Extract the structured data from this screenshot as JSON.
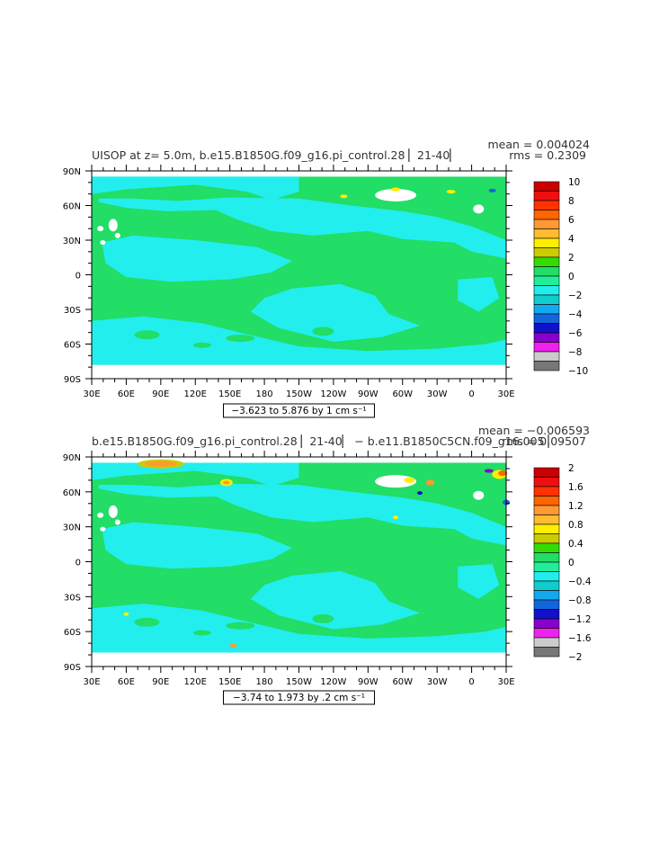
{
  "panels": [
    {
      "title": "UISOP at z=    5.0m, b.e15.B1850G.f09_g16.pi_control.28 ▏21-40▏",
      "mean_label": "mean = 0.004024",
      "rms_label": "rms = 0.2309",
      "range_label": "−3.623 to 5.876 by 1 cm s⁻¹",
      "colorbar": {
        "labels": [
          "10",
          "8",
          "6",
          "4",
          "2",
          "0",
          "−2",
          "−4",
          "−6",
          "−8",
          "−10"
        ],
        "colors": [
          "#cc0000",
          "#ee1010",
          "#ff3300",
          "#ff6600",
          "#ff9933",
          "#ffbb33",
          "#ffee00",
          "#cccc00",
          "#33dd00",
          "#22dd66",
          "#22ee99",
          "#22eeee",
          "#11cccc",
          "#11aaee",
          "#1166dd",
          "#1111cc",
          "#8800cc",
          "#ee22ee",
          "#cccccc",
          "#777777"
        ]
      }
    },
    {
      "title": "b.e15.B1850G.f09_g16.pi_control.28 ▏21-40▏ − b.e11.B1850C5CN.f09_g16.005 ▏",
      "mean_label": "mean = −0.006593",
      "rms_label": "rms = 0.09507",
      "range_label": "−3.74 to 1.973 by .2 cm s⁻¹",
      "colorbar": {
        "labels": [
          "2",
          "1.6",
          "1.2",
          "0.8",
          "0.4",
          "0",
          "−0.4",
          "−0.8",
          "−1.2",
          "−1.6",
          "−2"
        ],
        "colors": [
          "#cc0000",
          "#ee1010",
          "#ff3300",
          "#ff6600",
          "#ff9933",
          "#ffbb33",
          "#ffee00",
          "#cccc00",
          "#33dd00",
          "#22dd66",
          "#22ee99",
          "#22eeee",
          "#11cccc",
          "#11aaee",
          "#1166dd",
          "#1111cc",
          "#8800cc",
          "#ee22ee",
          "#cccccc",
          "#777777"
        ]
      }
    }
  ],
  "chart_data": {
    "type": "heatmap",
    "x_tick_labels": [
      "30E",
      "60E",
      "90E",
      "120E",
      "150E",
      "180",
      "150W",
      "120W",
      "90W",
      "60W",
      "30W",
      "0",
      "30E"
    ],
    "y_tick_labels": [
      "90N",
      "60N",
      "30N",
      "0",
      "30S",
      "60S",
      "90S"
    ],
    "field_colors": {
      "background": "#22dd66",
      "secondary": "#22eeee",
      "land_mask": "#ffffff"
    }
  }
}
